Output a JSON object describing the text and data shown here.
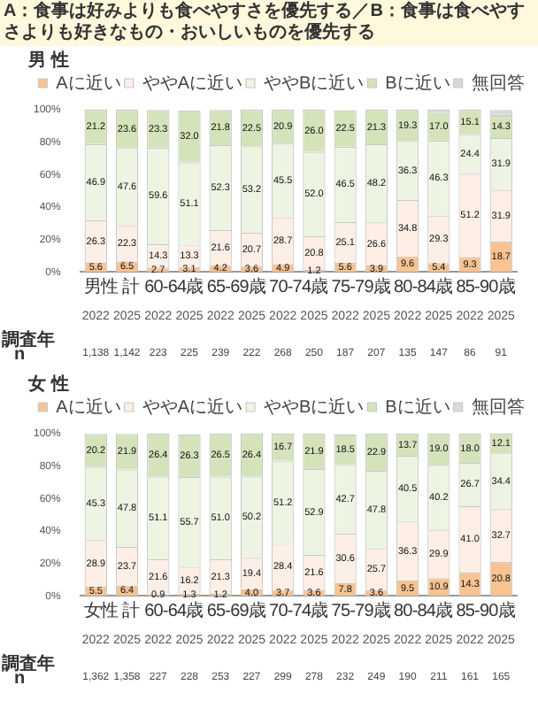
{
  "chart_data": [
    {
      "type": "bar",
      "title": "A：食事は好みよりも食べやすさを優先する／B：食事は食べやすさよりも好きなもの・おいしいものを優先する",
      "subtitle": "男 性",
      "stacked": true,
      "legend": "top",
      "grid": false,
      "categories": [
        "2022",
        "2025",
        "2022",
        "2025",
        "2022",
        "2025",
        "2022",
        "2025",
        "2022",
        "2025",
        "2022",
        "2025",
        "2022",
        "2025"
      ],
      "ylim": [
        0,
        100
      ],
      "yticks": [
        {
          "value": 0,
          "label": "0%"
        },
        {
          "value": 20,
          "label": "20%"
        },
        {
          "value": 40,
          "label": "40%"
        },
        {
          "value": 60,
          "label": "60%"
        },
        {
          "value": 80,
          "label": "80%"
        },
        {
          "value": 100,
          "label": "100%"
        }
      ],
      "series": [
        {
          "name": "Aに近い",
          "color": "#f8c291",
          "values": [
            5.6,
            6.5,
            2.7,
            3.1,
            4.2,
            3.6,
            4.9,
            1.2,
            5.6,
            3.9,
            9.6,
            5.4,
            9.3,
            18.7
          ],
          "value_labels": [
            "5.6",
            "6.5",
            "2.7",
            "3.1",
            "4.2",
            "3.6",
            "4.9",
            "1.2",
            "5.6",
            "3.9",
            "9.6",
            "5.4",
            "9.3",
            "18.7"
          ]
        },
        {
          "name": "ややAに近い",
          "color": "#fdefe6",
          "values": [
            26.3,
            22.3,
            14.3,
            13.3,
            21.6,
            20.7,
            28.7,
            20.8,
            25.1,
            26.6,
            34.8,
            29.3,
            51.2,
            31.9
          ],
          "value_labels": [
            "26.3",
            "22.3",
            "14.3",
            "13.3",
            "21.6",
            "20.7",
            "28.7",
            "20.8",
            "25.1",
            "26.6",
            "34.8",
            "29.3",
            "51.2",
            "31.9"
          ]
        },
        {
          "name": "ややBに近い",
          "color": "#eef4e2",
          "values": [
            46.9,
            47.6,
            59.6,
            51.1,
            52.3,
            53.2,
            45.5,
            52.0,
            46.5,
            48.2,
            36.3,
            46.3,
            24.4,
            31.9
          ],
          "value_labels": [
            "46.9",
            "47.6",
            "59.6",
            "51.1",
            "52.3",
            "53.2",
            "45.5",
            "52.0",
            "46.5",
            "48.2",
            "36.3",
            "46.3",
            "24.4",
            "31.9"
          ]
        },
        {
          "name": "Bに近い",
          "color": "#d5e3bb",
          "values": [
            21.2,
            23.6,
            23.3,
            32.0,
            21.8,
            22.5,
            20.9,
            26.0,
            22.5,
            21.3,
            19.3,
            17.0,
            15.1,
            14.3
          ],
          "value_labels": [
            "21.2",
            "23.6",
            "23.3",
            "32.0",
            "21.8",
            "22.5",
            "20.9",
            "26.0",
            "22.5",
            "21.3",
            "19.3",
            "17.0",
            "15.1",
            "14.3"
          ]
        },
        {
          "name": "無回答",
          "color": "#d9d9d9",
          "values": [
            0,
            0,
            0,
            0,
            0,
            0,
            0,
            0,
            0,
            0,
            0,
            2,
            0,
            3
          ]
        }
      ],
      "annotations": [
        "調査年",
        "n",
        "男性 計",
        "60-64歳",
        "65-69歳",
        "70-74歳",
        "75-79歳",
        "80-84歳",
        "85-90歳",
        "1,138",
        "1,142",
        "223",
        "225",
        "239",
        "222",
        "268",
        "250",
        "187",
        "207",
        "135",
        "147",
        "86",
        "91"
      ]
    },
    {
      "type": "bar",
      "subtitle": "女 性",
      "stacked": true,
      "legend": "top",
      "grid": false,
      "categories": [
        "2022",
        "2025",
        "2022",
        "2025",
        "2022",
        "2025",
        "2022",
        "2025",
        "2022",
        "2025",
        "2022",
        "2025",
        "2022",
        "2025"
      ],
      "ylim": [
        0,
        100
      ],
      "yticks": [
        {
          "value": 0,
          "label": "0%"
        },
        {
          "value": 20,
          "label": "20%"
        },
        {
          "value": 40,
          "label": "40%"
        },
        {
          "value": 60,
          "label": "60%"
        },
        {
          "value": 80,
          "label": "80%"
        },
        {
          "value": 100,
          "label": "100%"
        }
      ],
      "series": [
        {
          "name": "Aに近い",
          "color": "#f8c291",
          "values": [
            5.5,
            6.4,
            0.9,
            1.3,
            1.2,
            4.0,
            3.7,
            3.6,
            7.8,
            3.6,
            9.5,
            10.9,
            14.3,
            20.8
          ],
          "value_labels": [
            "5.5",
            "6.4",
            "0.9",
            "1.3",
            "1.2",
            "4.0",
            "3.7",
            "3.6",
            "7.8",
            "3.6",
            "9.5",
            "10.9",
            "14.3",
            "20.8"
          ]
        },
        {
          "name": "ややAに近い",
          "color": "#fdefe6",
          "values": [
            28.9,
            23.7,
            21.6,
            16.2,
            21.3,
            19.4,
            28.4,
            21.6,
            30.6,
            25.7,
            36.3,
            29.9,
            41.0,
            32.7
          ],
          "value_labels": [
            "28.9",
            "23.7",
            "21.6",
            "16.2",
            "21.3",
            "19.4",
            "28.4",
            "21.6",
            "30.6",
            "25.7",
            "36.3",
            "29.9",
            "41.0",
            "32.7"
          ]
        },
        {
          "name": "ややBに近い",
          "color": "#eef4e2",
          "values": [
            45.3,
            47.8,
            51.1,
            55.7,
            51.0,
            50.2,
            51.2,
            52.9,
            42.7,
            47.8,
            40.5,
            40.2,
            26.7,
            34.4
          ],
          "value_labels": [
            "45.3",
            "47.8",
            "51.1",
            "55.7",
            "51.0",
            "50.2",
            "51.2",
            "52.9",
            "42.7",
            "47.8",
            "40.5",
            "40.2",
            "26.7",
            "34.4"
          ]
        },
        {
          "name": "Bに近い",
          "color": "#d5e3bb",
          "values": [
            20.2,
            21.9,
            26.4,
            26.3,
            26.5,
            26.4,
            16.7,
            21.9,
            18.5,
            22.9,
            13.7,
            19.0,
            18.0,
            12.1
          ],
          "value_labels": [
            "20.2",
            "21.9",
            "26.4",
            "26.3",
            "26.5",
            "26.4",
            "16.7",
            "21.9",
            "18.5",
            "22.9",
            "13.7",
            "19.0",
            "18.0",
            "12.1"
          ]
        },
        {
          "name": "無回答",
          "color": "#d9d9d9",
          "values": [
            0,
            0,
            0,
            0,
            0,
            0,
            0,
            0,
            0,
            0,
            0,
            0,
            0,
            0
          ]
        }
      ],
      "annotations": [
        "調査年",
        "n",
        "女性 計",
        "60-64歳",
        "65-69歳",
        "70-74歳",
        "75-79歳",
        "80-84歳",
        "85-90歳",
        "1,362",
        "1,358",
        "227",
        "228",
        "253",
        "227",
        "299",
        "278",
        "232",
        "249",
        "190",
        "211",
        "161",
        "165"
      ]
    }
  ]
}
